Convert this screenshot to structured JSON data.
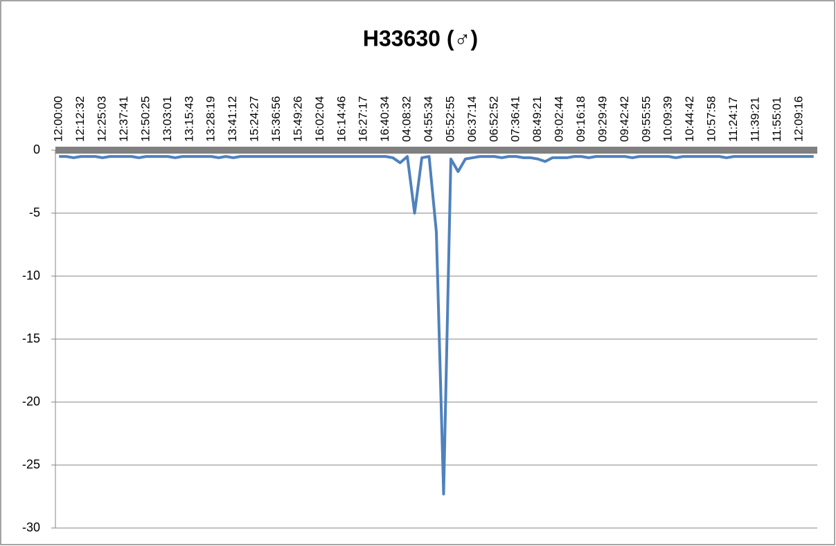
{
  "chart_data": {
    "type": "line",
    "title": "H33630 (♂)",
    "categories": [
      "12:00:00",
      null,
      null,
      "12:12:32",
      null,
      null,
      "12:25:03",
      null,
      null,
      "12:37:41",
      null,
      null,
      "12:50:25",
      null,
      null,
      "13:03:01",
      null,
      null,
      "13:15:43",
      null,
      null,
      "13:28:19",
      null,
      null,
      "13:41:12",
      null,
      null,
      "15:24:27",
      null,
      null,
      "15:36:56",
      null,
      null,
      "15:49:26",
      null,
      null,
      "16:02:04",
      null,
      null,
      "16:14:46",
      null,
      null,
      "16:27:17",
      null,
      null,
      "16:40:34",
      null,
      null,
      "04:08:32",
      null,
      null,
      "04:55:34",
      null,
      null,
      "05:52:55",
      null,
      null,
      "06:37:14",
      null,
      null,
      "06:52:52",
      null,
      null,
      "07:36:41",
      null,
      null,
      "08:49:21",
      null,
      null,
      "09:02:44",
      null,
      null,
      "09:16:18",
      null,
      null,
      "09:29:49",
      null,
      null,
      "09:42:42",
      null,
      null,
      "09:55:55",
      null,
      null,
      "10:09:39",
      null,
      null,
      "10:44:42",
      null,
      null,
      "10:57:58",
      null,
      null,
      "11:24:17",
      null,
      null,
      "11:39:21",
      null,
      null,
      "11:55:01",
      null,
      null,
      "12:09:16",
      null,
      null
    ],
    "values": [
      -0.5,
      -0.5,
      -0.6,
      -0.5,
      -0.5,
      -0.5,
      -0.6,
      -0.5,
      -0.5,
      -0.5,
      -0.5,
      -0.6,
      -0.5,
      -0.5,
      -0.5,
      -0.5,
      -0.6,
      -0.5,
      -0.5,
      -0.5,
      -0.5,
      -0.5,
      -0.6,
      -0.5,
      -0.6,
      -0.5,
      -0.5,
      -0.5,
      -0.5,
      -0.5,
      -0.5,
      -0.5,
      -0.5,
      -0.5,
      -0.5,
      -0.5,
      -0.5,
      -0.5,
      -0.5,
      -0.5,
      -0.5,
      -0.5,
      -0.5,
      -0.5,
      -0.5,
      -0.5,
      -0.6,
      -1,
      -0.5,
      -5,
      -0.6,
      -0.5,
      -6.5,
      -27.3,
      -0.7,
      -1.7,
      -0.7,
      -0.6,
      -0.5,
      -0.5,
      -0.5,
      -0.6,
      -0.5,
      -0.5,
      -0.6,
      -0.6,
      -0.7,
      -0.9,
      -0.6,
      -0.6,
      -0.6,
      -0.5,
      -0.5,
      -0.6,
      -0.5,
      -0.5,
      -0.5,
      -0.5,
      -0.5,
      -0.6,
      -0.5,
      -0.5,
      -0.5,
      -0.5,
      -0.5,
      -0.6,
      -0.5,
      -0.5,
      -0.5,
      -0.5,
      -0.5,
      -0.5,
      -0.6,
      -0.5,
      -0.5,
      -0.5,
      -0.5,
      -0.5,
      -0.5,
      -0.5,
      -0.5,
      -0.5,
      -0.5,
      -0.5,
      -0.5
    ],
    "color": "#4f81bd",
    "ylim": [
      -30,
      0
    ],
    "yticks": [
      0,
      -5,
      -10,
      -15,
      -20,
      -25,
      -30
    ],
    "grid": true
  }
}
